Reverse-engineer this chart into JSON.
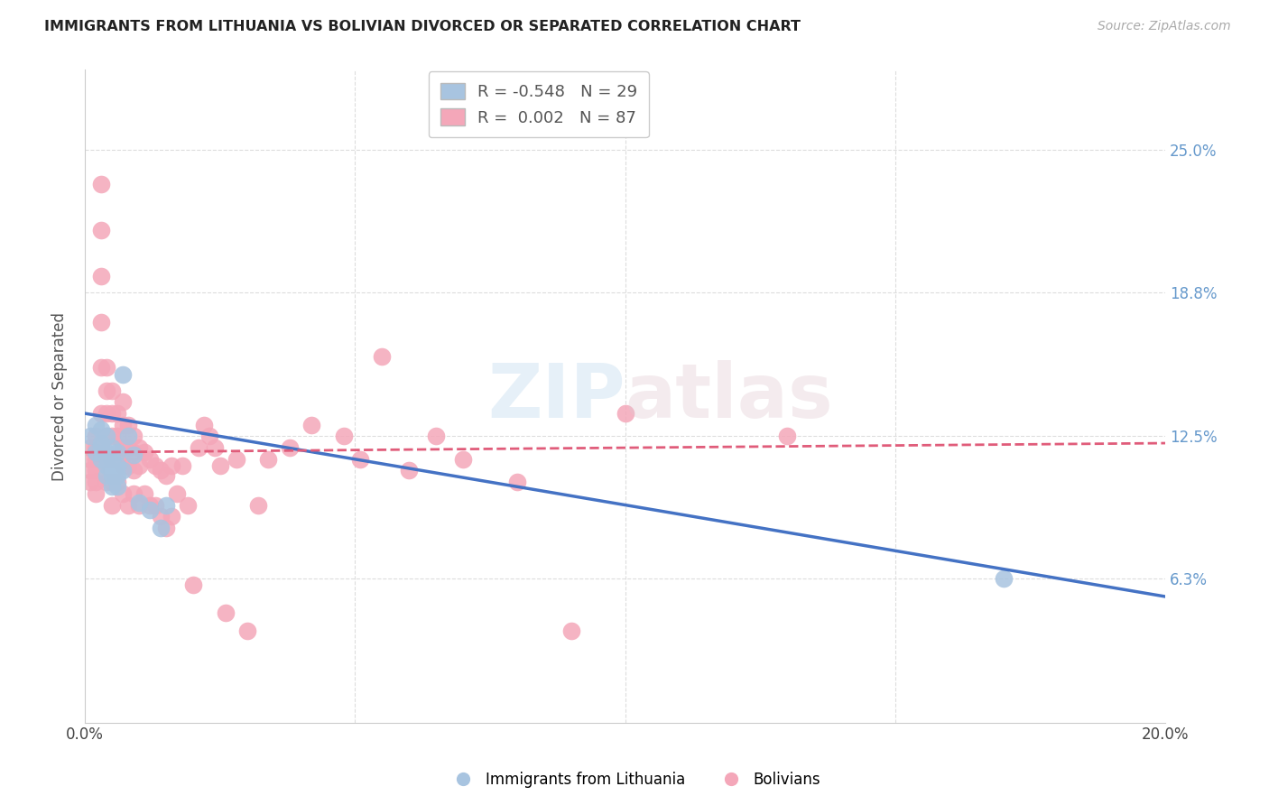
{
  "title": "IMMIGRANTS FROM LITHUANIA VS BOLIVIAN DIVORCED OR SEPARATED CORRELATION CHART",
  "source": "Source: ZipAtlas.com",
  "ylabel": "Divorced or Separated",
  "ytick_labels": [
    "6.3%",
    "12.5%",
    "18.8%",
    "25.0%"
  ],
  "ytick_values": [
    0.063,
    0.125,
    0.188,
    0.25
  ],
  "xlim": [
    0.0,
    0.2
  ],
  "ylim": [
    0.0,
    0.285
  ],
  "legend_blue_r": "-0.548",
  "legend_blue_n": "29",
  "legend_pink_r": "0.002",
  "legend_pink_n": "87",
  "blue_color": "#a8c4e0",
  "pink_color": "#f4a7b9",
  "blue_line_color": "#4472c4",
  "pink_line_color": "#e05c7a",
  "watermark_zip": "ZIP",
  "watermark_atlas": "atlas",
  "blue_scatter_x": [
    0.001,
    0.002,
    0.002,
    0.003,
    0.003,
    0.003,
    0.003,
    0.004,
    0.004,
    0.004,
    0.004,
    0.005,
    0.005,
    0.005,
    0.005,
    0.005,
    0.006,
    0.006,
    0.006,
    0.006,
    0.007,
    0.007,
    0.008,
    0.009,
    0.01,
    0.012,
    0.014,
    0.015,
    0.17
  ],
  "blue_scatter_y": [
    0.125,
    0.13,
    0.118,
    0.128,
    0.122,
    0.115,
    0.12,
    0.125,
    0.118,
    0.112,
    0.108,
    0.12,
    0.115,
    0.11,
    0.108,
    0.103,
    0.118,
    0.112,
    0.108,
    0.103,
    0.152,
    0.11,
    0.125,
    0.117,
    0.096,
    0.093,
    0.085,
    0.095,
    0.063
  ],
  "pink_scatter_x": [
    0.001,
    0.001,
    0.001,
    0.001,
    0.002,
    0.002,
    0.002,
    0.002,
    0.002,
    0.002,
    0.003,
    0.003,
    0.003,
    0.003,
    0.003,
    0.003,
    0.003,
    0.004,
    0.004,
    0.004,
    0.004,
    0.004,
    0.004,
    0.005,
    0.005,
    0.005,
    0.005,
    0.005,
    0.005,
    0.006,
    0.006,
    0.006,
    0.006,
    0.007,
    0.007,
    0.007,
    0.007,
    0.007,
    0.008,
    0.008,
    0.008,
    0.008,
    0.009,
    0.009,
    0.009,
    0.009,
    0.01,
    0.01,
    0.01,
    0.011,
    0.011,
    0.012,
    0.012,
    0.013,
    0.013,
    0.014,
    0.014,
    0.015,
    0.015,
    0.016,
    0.016,
    0.017,
    0.018,
    0.019,
    0.02,
    0.021,
    0.022,
    0.023,
    0.024,
    0.025,
    0.026,
    0.028,
    0.03,
    0.032,
    0.034,
    0.038,
    0.042,
    0.048,
    0.051,
    0.055,
    0.06,
    0.065,
    0.07,
    0.08,
    0.09,
    0.1,
    0.13
  ],
  "pink_scatter_y": [
    0.12,
    0.115,
    0.11,
    0.105,
    0.125,
    0.12,
    0.115,
    0.11,
    0.105,
    0.1,
    0.235,
    0.215,
    0.195,
    0.175,
    0.155,
    0.135,
    0.12,
    0.155,
    0.145,
    0.135,
    0.125,
    0.115,
    0.105,
    0.145,
    0.135,
    0.125,
    0.115,
    0.105,
    0.095,
    0.135,
    0.125,
    0.115,
    0.105,
    0.14,
    0.13,
    0.12,
    0.112,
    0.1,
    0.13,
    0.12,
    0.112,
    0.095,
    0.125,
    0.118,
    0.11,
    0.1,
    0.12,
    0.112,
    0.095,
    0.118,
    0.1,
    0.115,
    0.095,
    0.112,
    0.095,
    0.11,
    0.09,
    0.108,
    0.085,
    0.112,
    0.09,
    0.1,
    0.112,
    0.095,
    0.06,
    0.12,
    0.13,
    0.125,
    0.12,
    0.112,
    0.048,
    0.115,
    0.04,
    0.095,
    0.115,
    0.12,
    0.13,
    0.125,
    0.115,
    0.16,
    0.11,
    0.125,
    0.115,
    0.105,
    0.04,
    0.135,
    0.125
  ],
  "blue_trendline_x": [
    0.0,
    0.2
  ],
  "blue_trendline_y": [
    0.135,
    0.055
  ],
  "pink_trendline_x": [
    0.0,
    0.2
  ],
  "pink_trendline_y": [
    0.118,
    0.122
  ]
}
